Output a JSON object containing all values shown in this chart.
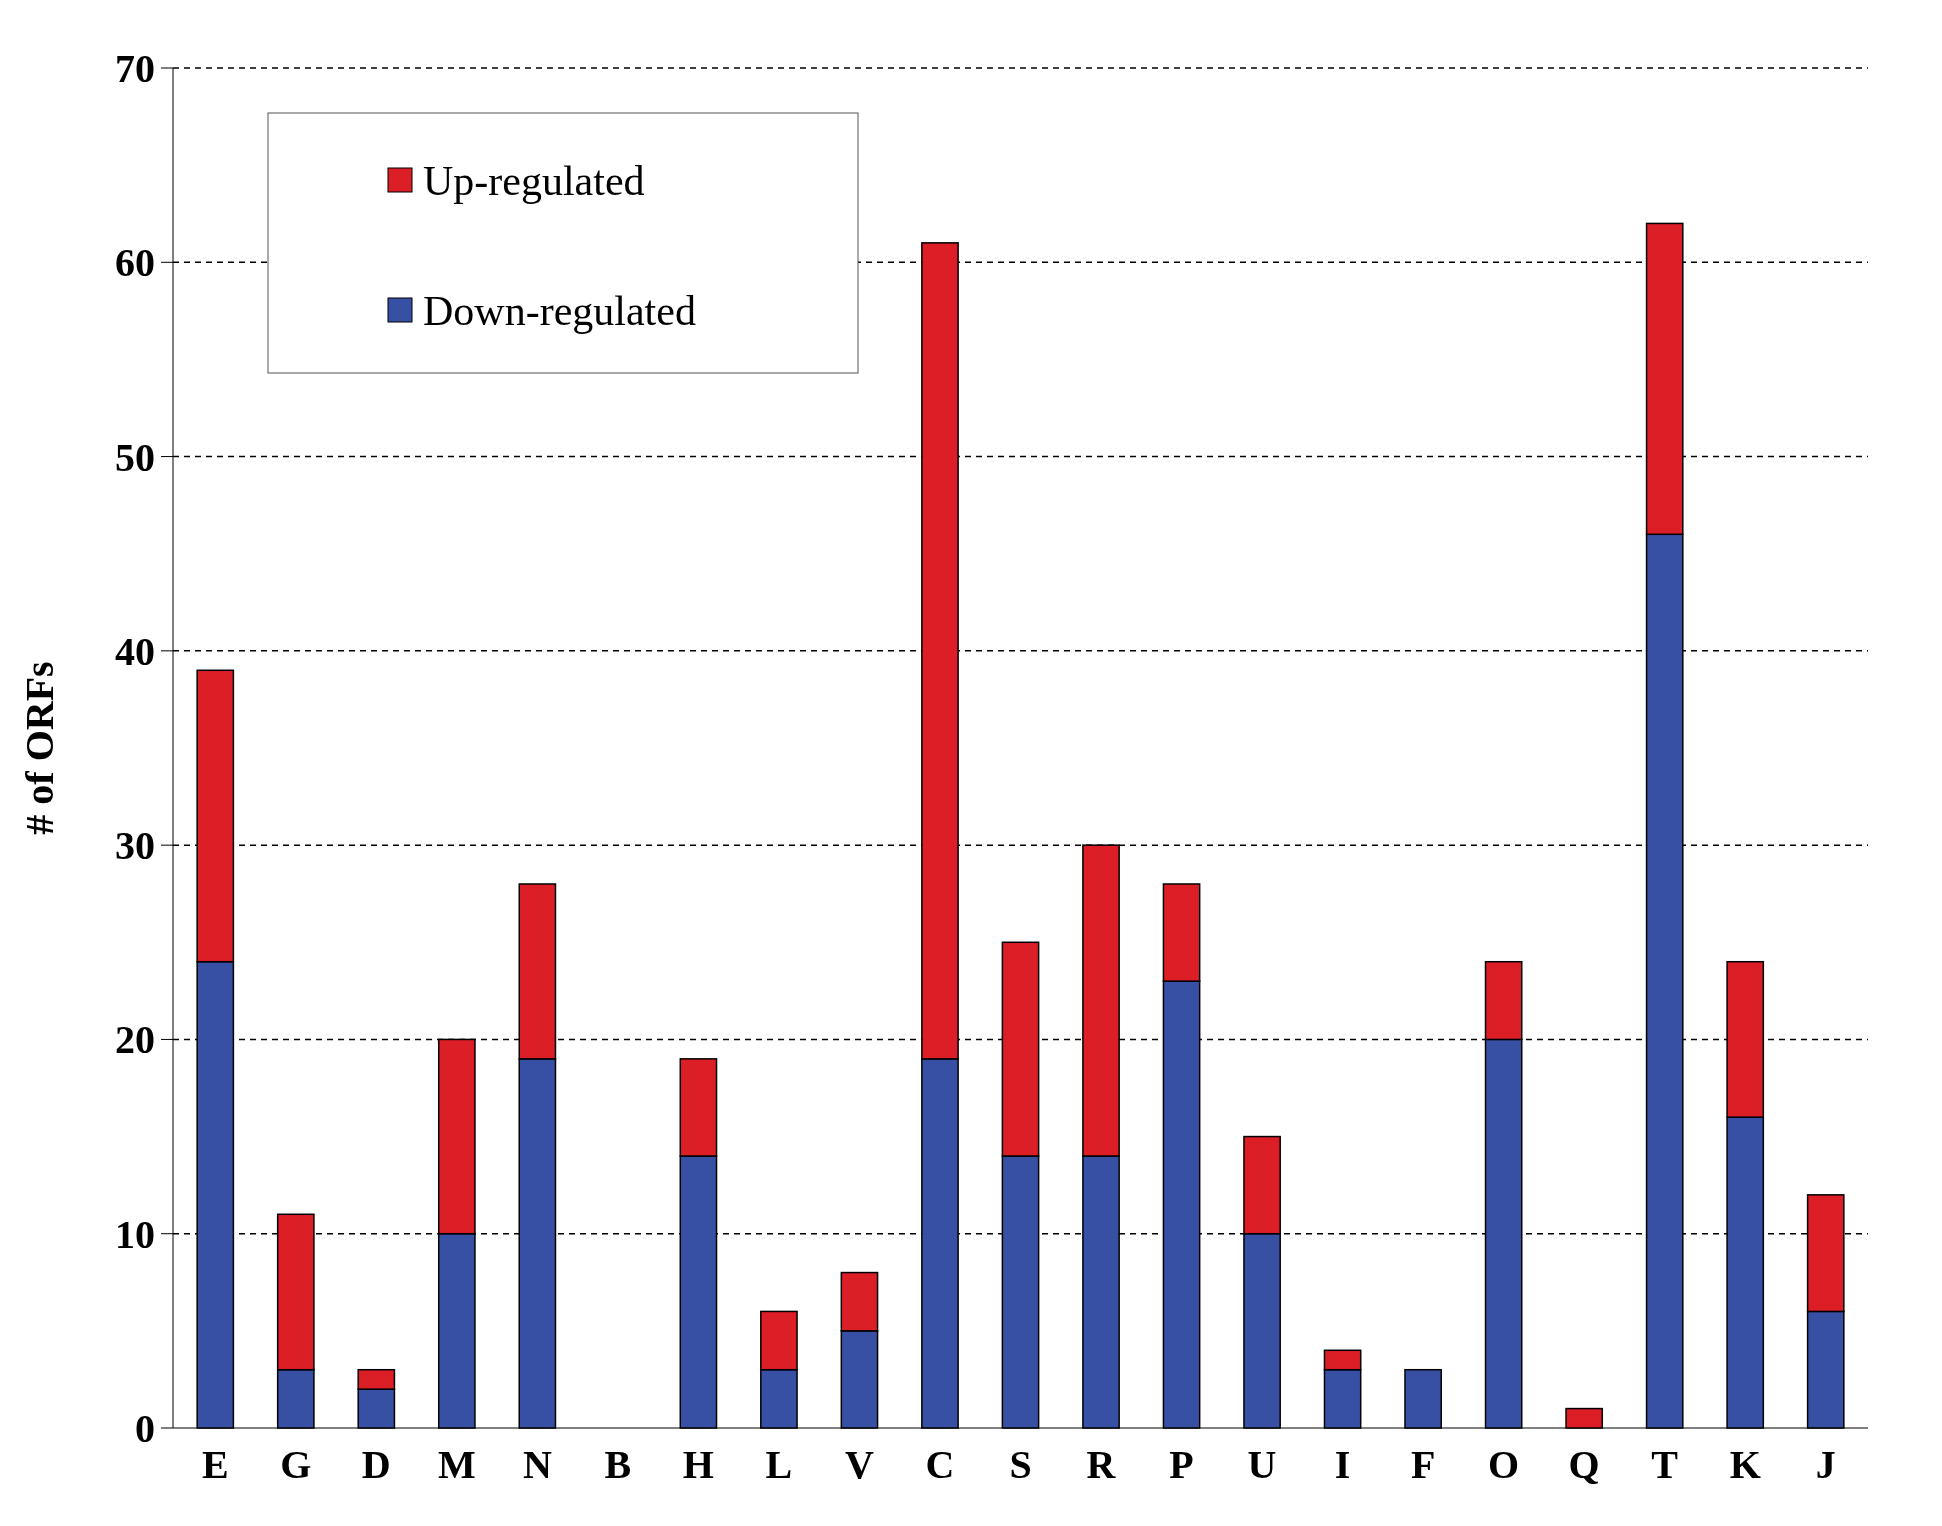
{
  "chart_data": {
    "type": "bar",
    "stacked": true,
    "ylabel": "# of ORFs",
    "categories": [
      "E",
      "G",
      "D",
      "M",
      "N",
      "B",
      "H",
      "L",
      "V",
      "C",
      "S",
      "R",
      "P",
      "U",
      "I",
      "F",
      "O",
      "Q",
      "T",
      "K",
      "J"
    ],
    "series": [
      {
        "name": "Down-regulated",
        "color": "#3850a4",
        "values": [
          24,
          3,
          2,
          10,
          19,
          0,
          14,
          3,
          5,
          19,
          14,
          14,
          23,
          10,
          3,
          3,
          20,
          0,
          46,
          16,
          6
        ]
      },
      {
        "name": "Up-regulated",
        "color": "#dc1f26",
        "values": [
          15,
          8,
          1,
          10,
          9,
          0,
          5,
          3,
          3,
          42,
          11,
          16,
          5,
          5,
          1,
          0,
          4,
          1,
          16,
          8,
          6
        ]
      }
    ],
    "ylim": [
      0,
      70
    ],
    "yticks": [
      0,
      10,
      20,
      30,
      40,
      50,
      60,
      70
    ],
    "grid": "y",
    "legend": "top left"
  }
}
